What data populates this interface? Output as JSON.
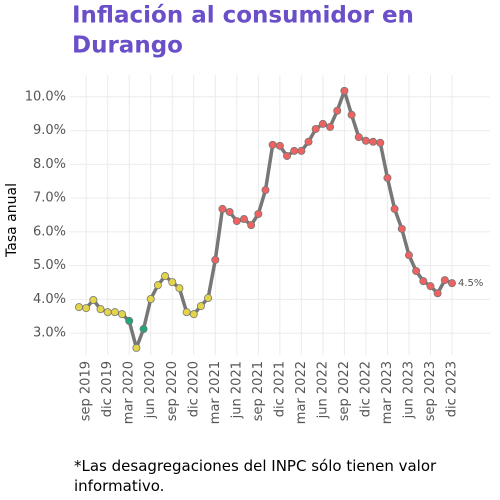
{
  "chart_data": {
    "type": "line",
    "title_lines": [
      "Inflación al consumidor en",
      "Durango"
    ],
    "y_label": "Tasa anual",
    "caption": "*Las desagregaciones del INPC sólo tienen valor informativo.",
    "categories": [
      null,
      "sep 2019",
      null,
      null,
      "dic 2019",
      null,
      null,
      "mar 2020",
      null,
      null,
      "jun 2020",
      null,
      null,
      "sep 2020",
      null,
      null,
      "dic 2020",
      null,
      null,
      "mar 2021",
      null,
      null,
      "jun 2021",
      null,
      null,
      "sep 2021",
      null,
      null,
      "dic 2021",
      null,
      null,
      "mar 2022",
      null,
      null,
      "jun 2022",
      null,
      null,
      "sep 2022",
      null,
      null,
      "dic 2022",
      null,
      null,
      "mar 2023",
      null,
      null,
      "jun 2023",
      null,
      null,
      "sep 2023",
      null,
      null,
      "dic 2023"
    ],
    "series": [
      {
        "name": null,
        "color": "#777777",
        "values": [
          3.77,
          3.74,
          3.98,
          3.71,
          3.62,
          3.62,
          3.56,
          3.36,
          2.56,
          3.12,
          4.01,
          4.42,
          4.69,
          4.51,
          4.33,
          3.62,
          3.56,
          3.8,
          4.04,
          5.17,
          6.68,
          6.59,
          6.32,
          6.38,
          6.2,
          6.53,
          7.24,
          8.58,
          8.55,
          8.25,
          8.4,
          8.4,
          8.67,
          9.05,
          9.2,
          9.11,
          9.59,
          10.18,
          9.47,
          8.81,
          8.7,
          8.67,
          8.64,
          7.6,
          6.68,
          6.09,
          5.31,
          4.84,
          4.54,
          4.39,
          4.18,
          4.57,
          4.48
        ],
        "value_labels": [
          null,
          null,
          null,
          null,
          null,
          null,
          null,
          null,
          null,
          null,
          null,
          null,
          null,
          null,
          null,
          null,
          null,
          null,
          null,
          null,
          null,
          null,
          null,
          null,
          null,
          null,
          null,
          null,
          null,
          null,
          null,
          null,
          null,
          null,
          null,
          null,
          null,
          null,
          null,
          null,
          null,
          null,
          null,
          null,
          null,
          null,
          null,
          null,
          null,
          null,
          null,
          null,
          "4.5%"
        ],
        "point_colors": [
          "#e3d44a",
          "#e3d44a",
          "#e3d44a",
          "#e3d44a",
          "#e3d44a",
          "#e3d44a",
          "#e3d44a",
          "#1fa67a",
          "#e3d44a",
          "#1fa67a",
          "#e3d44a",
          "#e3d44a",
          "#e3d44a",
          "#e3d44a",
          "#e3d44a",
          "#e3d44a",
          "#e3d44a",
          "#e3d44a",
          "#e3d44a",
          "#ef6262",
          "#ef6262",
          "#ef6262",
          "#ef6262",
          "#ef6262",
          "#ef6262",
          "#ef6262",
          "#ef6262",
          "#ef6262",
          "#ef6262",
          "#ef6262",
          "#ef6262",
          "#ef6262",
          "#ef6262",
          "#ef6262",
          "#ef6262",
          "#ef6262",
          "#ef6262",
          "#ef6262",
          "#ef6262",
          "#ef6262",
          "#ef6262",
          "#ef6262",
          "#ef6262",
          "#ef6262",
          "#ef6262",
          "#ef6262",
          "#ef6262",
          "#ef6262",
          "#ef6262",
          "#ef6262",
          "#ef6262",
          "#ef6262",
          "#ef6262"
        ]
      }
    ],
    "ylim": [
      2.35,
      10.65
    ],
    "yticks": [
      {
        "value": 3,
        "label": "3.0%"
      },
      {
        "value": 4,
        "label": "4.0%"
      },
      {
        "value": 5,
        "label": "5.0%"
      },
      {
        "value": 6,
        "label": "6.0%"
      },
      {
        "value": 7,
        "label": "7.0%"
      },
      {
        "value": 8,
        "label": "8.0%"
      },
      {
        "value": 9,
        "label": "9.0%"
      },
      {
        "value": 10,
        "label": "10.0%"
      }
    ],
    "grid": true
  }
}
